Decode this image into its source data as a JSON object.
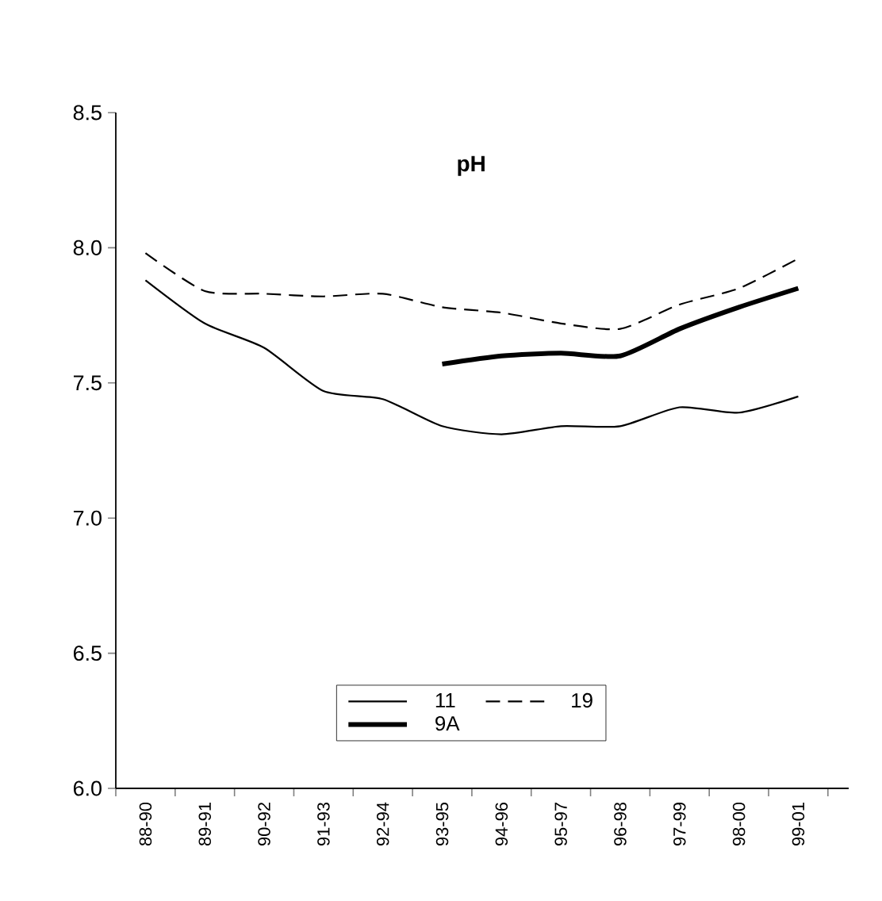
{
  "chart_data": {
    "type": "line",
    "title": "pH",
    "categories": [
      "88-90",
      "89-91",
      "90-92",
      "91-93",
      "92-94",
      "93-95",
      "94-96",
      "95-97",
      "96-98",
      "97-99",
      "98-00",
      "99-01"
    ],
    "series": [
      {
        "name": "11",
        "color": "#000000",
        "line_style": "solid",
        "values": [
          7.88,
          7.72,
          7.63,
          7.47,
          7.44,
          7.34,
          7.31,
          7.34,
          7.34,
          7.41,
          7.39,
          7.45
        ]
      },
      {
        "name": "19",
        "color": "#000000",
        "line_style": "dashed",
        "values": [
          7.98,
          7.84,
          7.83,
          7.82,
          7.83,
          7.78,
          7.76,
          7.72,
          7.7,
          7.79,
          7.85,
          7.96
        ]
      },
      {
        "name": "9A",
        "color": "#000000",
        "line_style": "solid",
        "values": [
          null,
          null,
          null,
          null,
          null,
          7.57,
          7.6,
          7.61,
          7.6,
          7.7,
          7.78,
          7.85
        ]
      }
    ],
    "ylim": [
      6.0,
      8.5
    ],
    "yticks": [
      {
        "value": 6.0,
        "label": "6.0"
      },
      {
        "value": 6.5,
        "label": "6.5"
      },
      {
        "value": 7.0,
        "label": "7.0"
      },
      {
        "value": 7.5,
        "label": "7.5"
      },
      {
        "value": 8.0,
        "label": "8.0"
      },
      {
        "value": 8.5,
        "label": "8.5"
      }
    ],
    "grid": false,
    "legend": "bottom",
    "marker": "none"
  }
}
